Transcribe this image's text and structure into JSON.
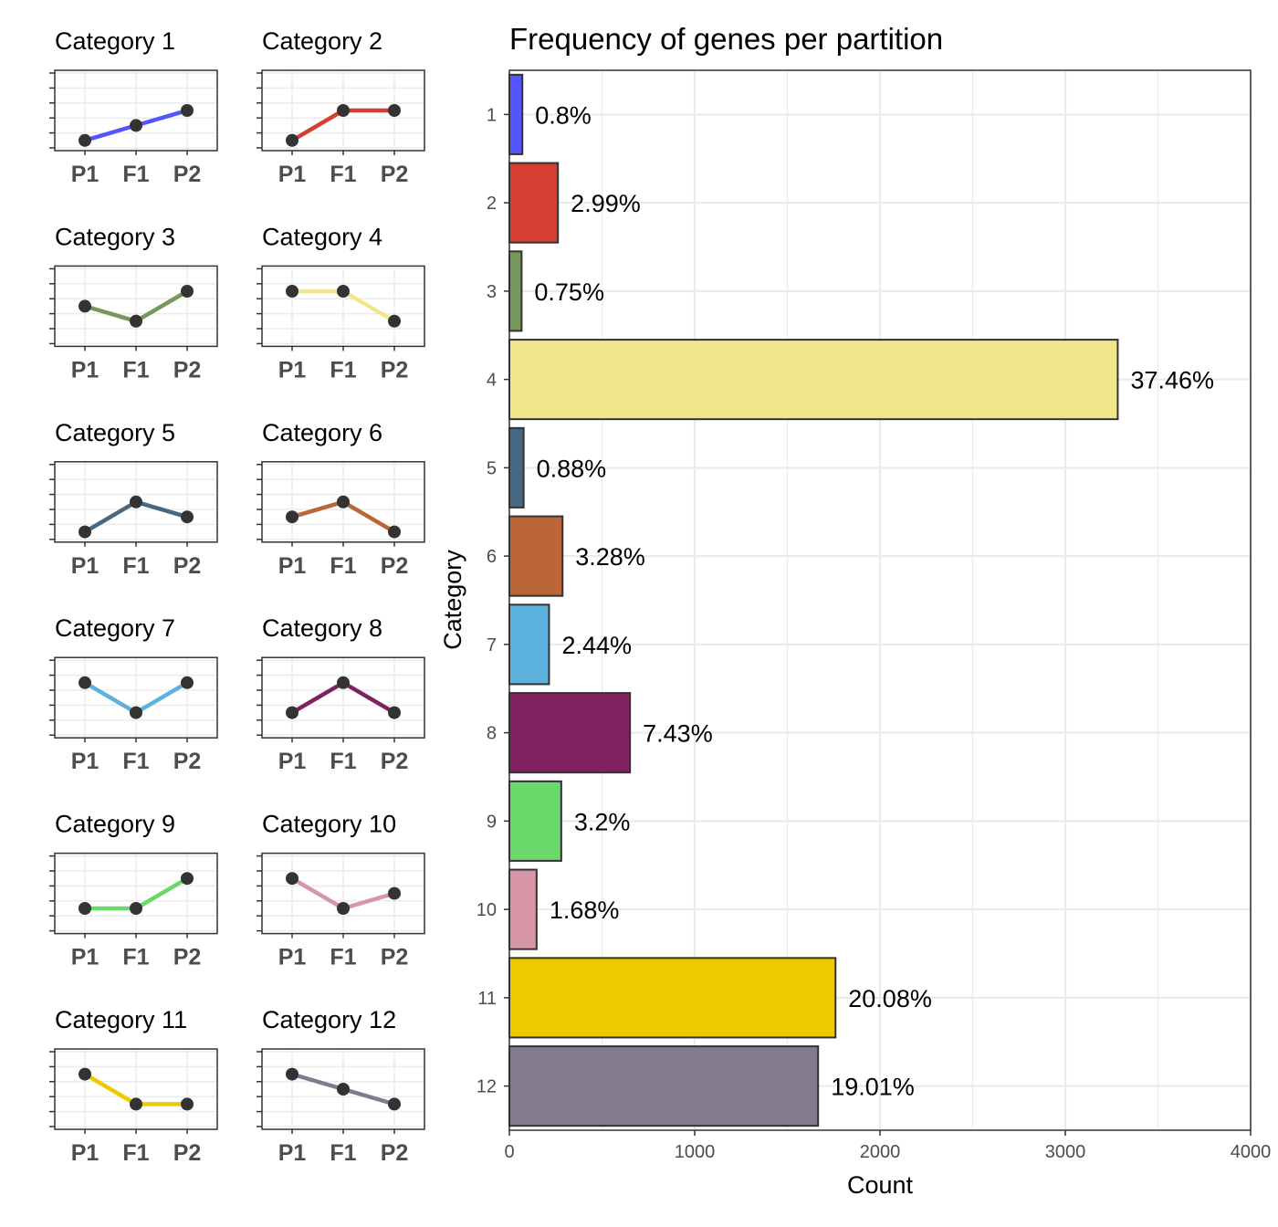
{
  "chart_data": [
    {
      "type": "line",
      "role": "category-profiles",
      "x_labels": [
        "P1",
        "F1",
        "P2"
      ],
      "y_levels": 5,
      "marker_color": "#333333",
      "panels": [
        {
          "title": "Category 1",
          "color": "#5555ff",
          "levels": [
            1,
            2,
            3
          ]
        },
        {
          "title": "Category 2",
          "color": "#d43f32",
          "levels": [
            1,
            3,
            3
          ]
        },
        {
          "title": "Category 3",
          "color": "#74985a",
          "levels": [
            3,
            2,
            4
          ]
        },
        {
          "title": "Category 4",
          "color": "#f1e68a",
          "levels": [
            4,
            4,
            2
          ]
        },
        {
          "title": "Category 5",
          "color": "#486780",
          "levels": [
            1,
            3,
            2
          ]
        },
        {
          "title": "Category 6",
          "color": "#bb6639",
          "levels": [
            2,
            3,
            1
          ]
        },
        {
          "title": "Category 7",
          "color": "#5db1df",
          "levels": [
            4,
            2,
            4
          ]
        },
        {
          "title": "Category 8",
          "color": "#80225f",
          "levels": [
            2,
            4,
            2
          ]
        },
        {
          "title": "Category 9",
          "color": "#6ad86a",
          "levels": [
            2,
            2,
            4
          ]
        },
        {
          "title": "Category 10",
          "color": "#d696a6",
          "levels": [
            4,
            2,
            3
          ]
        },
        {
          "title": "Category 11",
          "color": "#edc900",
          "levels": [
            4,
            2,
            2
          ]
        },
        {
          "title": "Category 12",
          "color": "#827a8d",
          "levels": [
            4,
            3,
            2
          ]
        }
      ]
    },
    {
      "type": "bar",
      "orientation": "horizontal",
      "title": "Frequency of genes per partition",
      "xlabel": "Count",
      "ylabel": "Category",
      "categories": [
        "1",
        "2",
        "3",
        "4",
        "5",
        "6",
        "7",
        "8",
        "9",
        "10",
        "11",
        "12"
      ],
      "values": [
        70,
        262,
        66,
        3283,
        77,
        287,
        214,
        651,
        280,
        147,
        1760,
        1666
      ],
      "labels": [
        "0.8%",
        "2.99%",
        "0.75%",
        "37.46%",
        "0.88%",
        "3.28%",
        "2.44%",
        "7.43%",
        "3.2%",
        "1.68%",
        "20.08%",
        "19.01%"
      ],
      "colors": [
        "#5555ff",
        "#d43f32",
        "#74985a",
        "#f1e68a",
        "#486780",
        "#bb6639",
        "#5db1df",
        "#80225f",
        "#6ad86a",
        "#d696a6",
        "#edc900",
        "#827a8d"
      ],
      "xlim": [
        0,
        4000
      ],
      "xticks": [
        "0",
        "1000",
        "2000",
        "3000",
        "4000"
      ],
      "grid": true
    }
  ]
}
